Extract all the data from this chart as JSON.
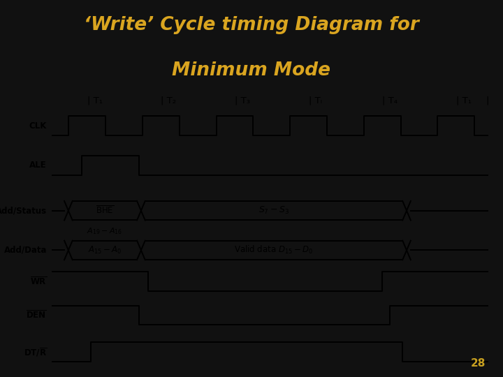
{
  "title_line1": "‘Write’ Cycle timing Diagram for",
  "title_line2": "Minimum Mode",
  "title_color": "#DAA520",
  "background_color": "#111111",
  "diagram_bg": "#ffffff",
  "page_number": "28",
  "line_color": "#000000",
  "period_labels": [
    "T₁",
    "T₂",
    "T₃",
    "Tₗ",
    "T₄",
    "T₁"
  ],
  "sig_labels": [
    "CLK",
    "ALE",
    "Add/Status",
    "Add/Data",
    "WR",
    "DEN",
    "DT/R"
  ],
  "overline_signals": [
    4,
    5
  ],
  "overline_R": 6,
  "bhe_label": "BHE",
  "s7s3_label": "S₇ – S₃",
  "a19_label": "A₁₉ – A₁₆",
  "a15_label": "A₁₅–A₀",
  "valid_data_label": "Valid data D₁₅ – D₀",
  "title_fontsize": 19,
  "label_fontsize": 8.5,
  "period_fontsize": 9.5
}
